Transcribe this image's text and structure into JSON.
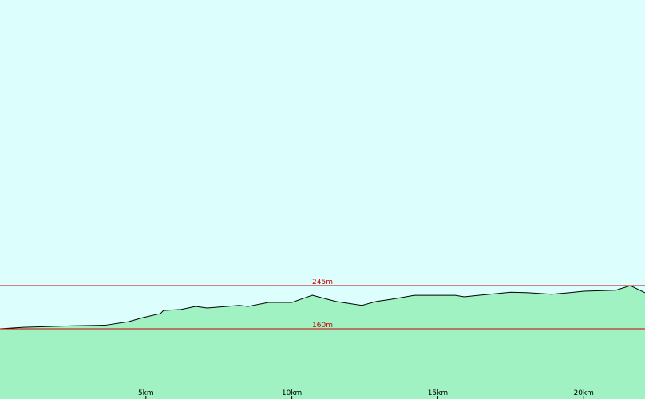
{
  "chart_data": {
    "type": "area",
    "x": [
      0,
      0.8,
      2.5,
      3.6,
      4.4,
      4.9,
      5.5,
      5.6,
      6.2,
      6.7,
      7.1,
      8.2,
      8.5,
      9.2,
      10.0,
      10.7,
      11.5,
      12.4,
      12.9,
      13.4,
      14.2,
      15.6,
      15.9,
      16.4,
      17.5,
      18.1,
      18.9,
      19.5,
      20.0,
      21.1,
      21.6,
      22.1
    ],
    "values": [
      160,
      163,
      166,
      167,
      174,
      182,
      190,
      196,
      198,
      204,
      201,
      206,
      204,
      212,
      212,
      226,
      214,
      206,
      214,
      218,
      226,
      226,
      223,
      226,
      232,
      231,
      228,
      231,
      234,
      236,
      245,
      231
    ],
    "color": "#a0f2c2",
    "line_color": "#000000",
    "background": "#dcfffe",
    "xlim": [
      0,
      22.1
    ],
    "ylim": [
      21.5,
      808.5
    ],
    "xticks": [
      {
        "value": 5,
        "label": "5km"
      },
      {
        "value": 10,
        "label": "10km"
      },
      {
        "value": 15,
        "label": "15km"
      },
      {
        "value": 20,
        "label": "20km"
      }
    ],
    "reference_lines": [
      {
        "value": 245,
        "label": "245m"
      },
      {
        "value": 160,
        "label": "160m"
      }
    ],
    "reference_color": "#c80000"
  }
}
